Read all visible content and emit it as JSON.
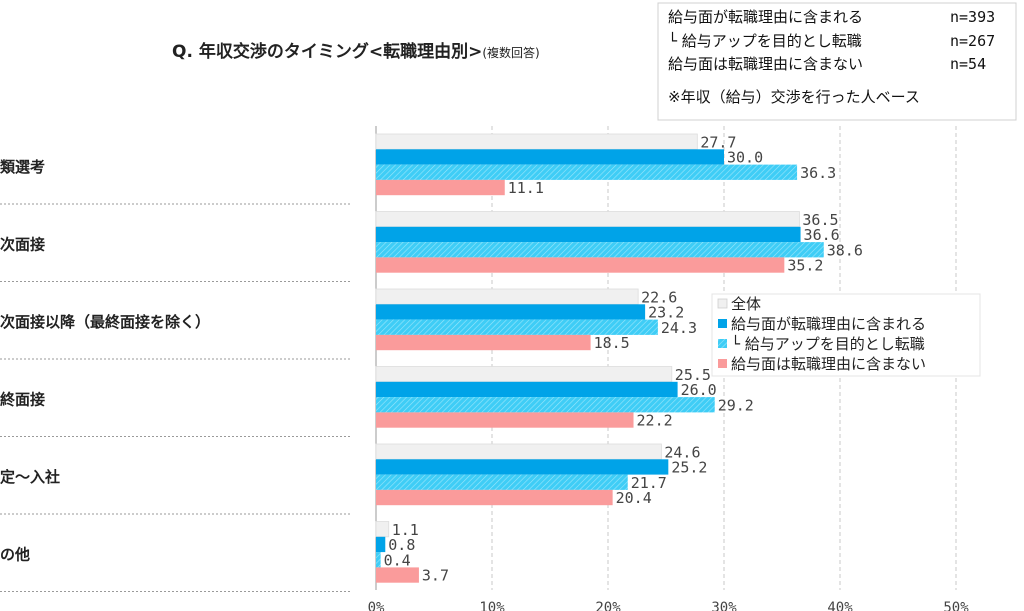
{
  "chart_data": {
    "type": "bar",
    "orientation": "horizontal",
    "title": "Q. 年収交渉のタイミング<転職理由別>",
    "title_note": "(複数回答)",
    "categories": [
      "類選考",
      "次面接",
      "次面接以降（最終面接を除く）",
      "終面接",
      "定～入社",
      "の他"
    ],
    "series": [
      {
        "name": "全体",
        "color": "#f0f0f0",
        "values": [
          27.7,
          36.5,
          22.6,
          25.5,
          24.6,
          1.1
        ]
      },
      {
        "name": "給与面が転職理由に含まれる",
        "color": "#00a3e8",
        "values": [
          30.0,
          36.6,
          23.2,
          26.0,
          25.2,
          0.8
        ]
      },
      {
        "name": "└ 給与アップを目的とし転職",
        "color": "#3fcdf6",
        "pattern": "hatch",
        "values": [
          36.3,
          38.6,
          24.3,
          29.2,
          21.7,
          0.4
        ]
      },
      {
        "name": "給与面は転職理由に含まない",
        "color": "#fa9b9b",
        "values": [
          11.1,
          35.2,
          18.5,
          22.2,
          20.4,
          3.7
        ]
      }
    ],
    "value_labels": [
      [
        "27.7",
        "36.5",
        "22.6",
        "25.5",
        "24.6",
        "1.1"
      ],
      [
        "30.0",
        "36.6",
        "23.2",
        "26.0",
        "25.2",
        "0.8"
      ],
      [
        "36.3",
        "38.6",
        "24.3",
        "29.2",
        "21.7",
        "0.4"
      ],
      [
        "11.1",
        "35.2",
        "18.5",
        "22.2",
        "20.4",
        "3.7"
      ]
    ],
    "xlim": [
      0,
      50
    ],
    "xticks": [
      "0%",
      "10%",
      "20%",
      "30%",
      "40%",
      "50%"
    ],
    "grid": "vertical-dashed",
    "legend_position": "center-right"
  },
  "info_box": {
    "rows": [
      {
        "label": "給与面が転職理由に含まれる",
        "n": "n=393"
      },
      {
        "label": "└ 給与アップを目的とし転職",
        "n": "n=267"
      },
      {
        "label": "給与面は転職理由に含まない",
        "n": "n=54"
      }
    ],
    "note": "※年収（給与）交渉を行った人ベース"
  }
}
